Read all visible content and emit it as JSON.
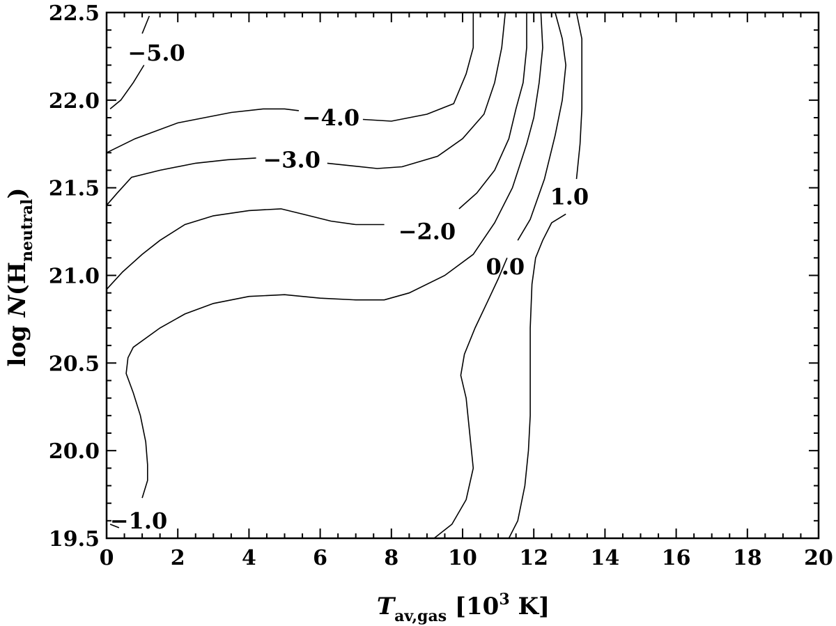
{
  "chart_data": {
    "type": "contour",
    "xlim": [
      0,
      20
    ],
    "ylim": [
      19.5,
      22.5
    ],
    "x_ticks": [
      "0",
      "2",
      "4",
      "6",
      "8",
      "10",
      "12",
      "14",
      "16",
      "18",
      "20"
    ],
    "y_ticks": [
      "19.5",
      "20.0",
      "20.5",
      "21.0",
      "21.5",
      "22.0",
      "22.5"
    ],
    "x_major": [
      0,
      2,
      4,
      6,
      8,
      10,
      12,
      14,
      16,
      18,
      20
    ],
    "y_major": [
      19.5,
      20.0,
      20.5,
      21.0,
      21.5,
      22.0,
      22.5
    ],
    "xlabel": {
      "var": "T",
      "sub": "av,gas",
      "unit_open": " [10",
      "unit_sup": "3",
      "unit_close": " K]"
    },
    "ylabel": {
      "pre": "log ",
      "var": "N",
      "open": "(H",
      "sub": "neutral",
      "close": ")"
    },
    "contours": [
      {
        "level": "−5.0",
        "label_at": [
          1.4,
          22.27
        ],
        "segments": [
          [
            [
              0.1,
              21.95
            ],
            [
              0.4,
              22.0
            ],
            [
              0.75,
              22.1
            ],
            [
              1.05,
              22.2
            ]
          ],
          [
            [
              1.0,
              22.38
            ],
            [
              1.2,
              22.48
            ]
          ]
        ]
      },
      {
        "level": "−4.0",
        "label_at": [
          6.3,
          21.9
        ],
        "segments": [
          [
            [
              0.0,
              21.7
            ],
            [
              0.8,
              21.78
            ],
            [
              2.0,
              21.87
            ],
            [
              3.5,
              21.93
            ],
            [
              4.4,
              21.95
            ],
            [
              5.0,
              21.95
            ],
            [
              5.4,
              21.94
            ]
          ],
          [
            [
              7.2,
              21.89
            ],
            [
              8.0,
              21.88
            ],
            [
              9.0,
              21.92
            ],
            [
              9.75,
              21.98
            ],
            [
              10.1,
              22.15
            ],
            [
              10.3,
              22.3
            ],
            [
              10.3,
              22.5
            ]
          ]
        ]
      },
      {
        "level": "−3.0",
        "label_at": [
          5.2,
          21.66
        ],
        "segments": [
          [
            [
              0.0,
              21.4
            ],
            [
              0.3,
              21.47
            ],
            [
              0.7,
              21.56
            ],
            [
              1.5,
              21.6
            ],
            [
              2.5,
              21.64
            ],
            [
              3.4,
              21.66
            ],
            [
              4.2,
              21.67
            ]
          ],
          [
            [
              6.2,
              21.64
            ],
            [
              7.6,
              21.61
            ],
            [
              8.3,
              21.62
            ],
            [
              9.3,
              21.68
            ],
            [
              10.0,
              21.78
            ],
            [
              10.6,
              21.92
            ],
            [
              10.9,
              22.1
            ],
            [
              11.1,
              22.3
            ],
            [
              11.2,
              22.5
            ]
          ]
        ]
      },
      {
        "level": "−2.0",
        "label_at": [
          9.0,
          21.25
        ],
        "segments": [
          [
            [
              0.0,
              20.92
            ],
            [
              0.45,
              21.02
            ],
            [
              1.0,
              21.12
            ],
            [
              1.5,
              21.2
            ],
            [
              2.2,
              21.29
            ],
            [
              3.0,
              21.34
            ],
            [
              4.0,
              21.37
            ],
            [
              4.9,
              21.38
            ],
            [
              5.5,
              21.35
            ],
            [
              6.3,
              21.31
            ],
            [
              7.0,
              21.29
            ],
            [
              7.8,
              21.29
            ]
          ],
          [
            [
              9.9,
              21.38
            ],
            [
              10.4,
              21.47
            ],
            [
              10.9,
              21.6
            ],
            [
              11.3,
              21.78
            ],
            [
              11.5,
              21.95
            ],
            [
              11.7,
              22.1
            ],
            [
              11.8,
              22.3
            ],
            [
              11.8,
              22.5
            ]
          ]
        ]
      },
      {
        "level": "−1.0",
        "label_at": [
          0.9,
          19.6
        ],
        "segments": [
          [
            [
              1.0,
              19.73
            ],
            [
              1.15,
              19.83
            ],
            [
              1.15,
              19.92
            ],
            [
              1.1,
              20.05
            ],
            [
              0.95,
              20.2
            ],
            [
              0.75,
              20.33
            ],
            [
              0.55,
              20.44
            ],
            [
              0.6,
              20.53
            ],
            [
              0.75,
              20.59
            ],
            [
              1.5,
              20.7
            ],
            [
              2.2,
              20.78
            ],
            [
              3.0,
              20.84
            ],
            [
              4.0,
              20.88
            ],
            [
              5.0,
              20.89
            ],
            [
              6.0,
              20.87
            ],
            [
              7.0,
              20.86
            ],
            [
              7.8,
              20.86
            ],
            [
              8.5,
              20.9
            ],
            [
              9.5,
              21.0
            ],
            [
              10.3,
              21.12
            ],
            [
              10.9,
              21.3
            ],
            [
              11.4,
              21.5
            ],
            [
              11.8,
              21.75
            ],
            [
              12.0,
              21.9
            ],
            [
              12.15,
              22.1
            ],
            [
              12.25,
              22.3
            ],
            [
              12.2,
              22.5
            ]
          ],
          [
            [
              0.1,
              19.58
            ],
            [
              0.35,
              19.56
            ]
          ]
        ]
      },
      {
        "level": "0.0",
        "label_at": [
          11.2,
          21.05
        ],
        "segments": [
          [
            [
              9.2,
              19.5
            ],
            [
              9.7,
              19.58
            ],
            [
              10.1,
              19.72
            ],
            [
              10.3,
              19.9
            ],
            [
              10.2,
              20.1
            ],
            [
              10.1,
              20.3
            ],
            [
              9.95,
              20.43
            ],
            [
              10.05,
              20.55
            ],
            [
              10.35,
              20.7
            ],
            [
              10.7,
              20.85
            ],
            [
              11.0,
              20.98
            ],
            [
              11.25,
              21.1
            ]
          ],
          [
            [
              11.55,
              21.2
            ],
            [
              11.9,
              21.32
            ],
            [
              12.3,
              21.55
            ],
            [
              12.6,
              21.8
            ],
            [
              12.8,
              22.0
            ],
            [
              12.9,
              22.2
            ],
            [
              12.8,
              22.35
            ],
            [
              12.6,
              22.5
            ]
          ]
        ]
      },
      {
        "level": "1.0",
        "label_at": [
          13.0,
          21.45
        ],
        "segments": [
          [
            [
              11.3,
              19.5
            ],
            [
              11.55,
              19.6
            ],
            [
              11.75,
              19.8
            ],
            [
              11.85,
              20.0
            ],
            [
              11.9,
              20.2
            ],
            [
              11.9,
              20.45
            ],
            [
              11.9,
              20.7
            ],
            [
              11.95,
              20.95
            ],
            [
              12.05,
              21.1
            ],
            [
              12.25,
              21.2
            ],
            [
              12.5,
              21.3
            ],
            [
              12.9,
              21.35
            ]
          ],
          [
            [
              13.2,
              21.55
            ],
            [
              13.3,
              21.75
            ],
            [
              13.35,
              21.95
            ],
            [
              13.35,
              22.15
            ],
            [
              13.35,
              22.35
            ],
            [
              13.2,
              22.5
            ]
          ]
        ]
      }
    ]
  }
}
